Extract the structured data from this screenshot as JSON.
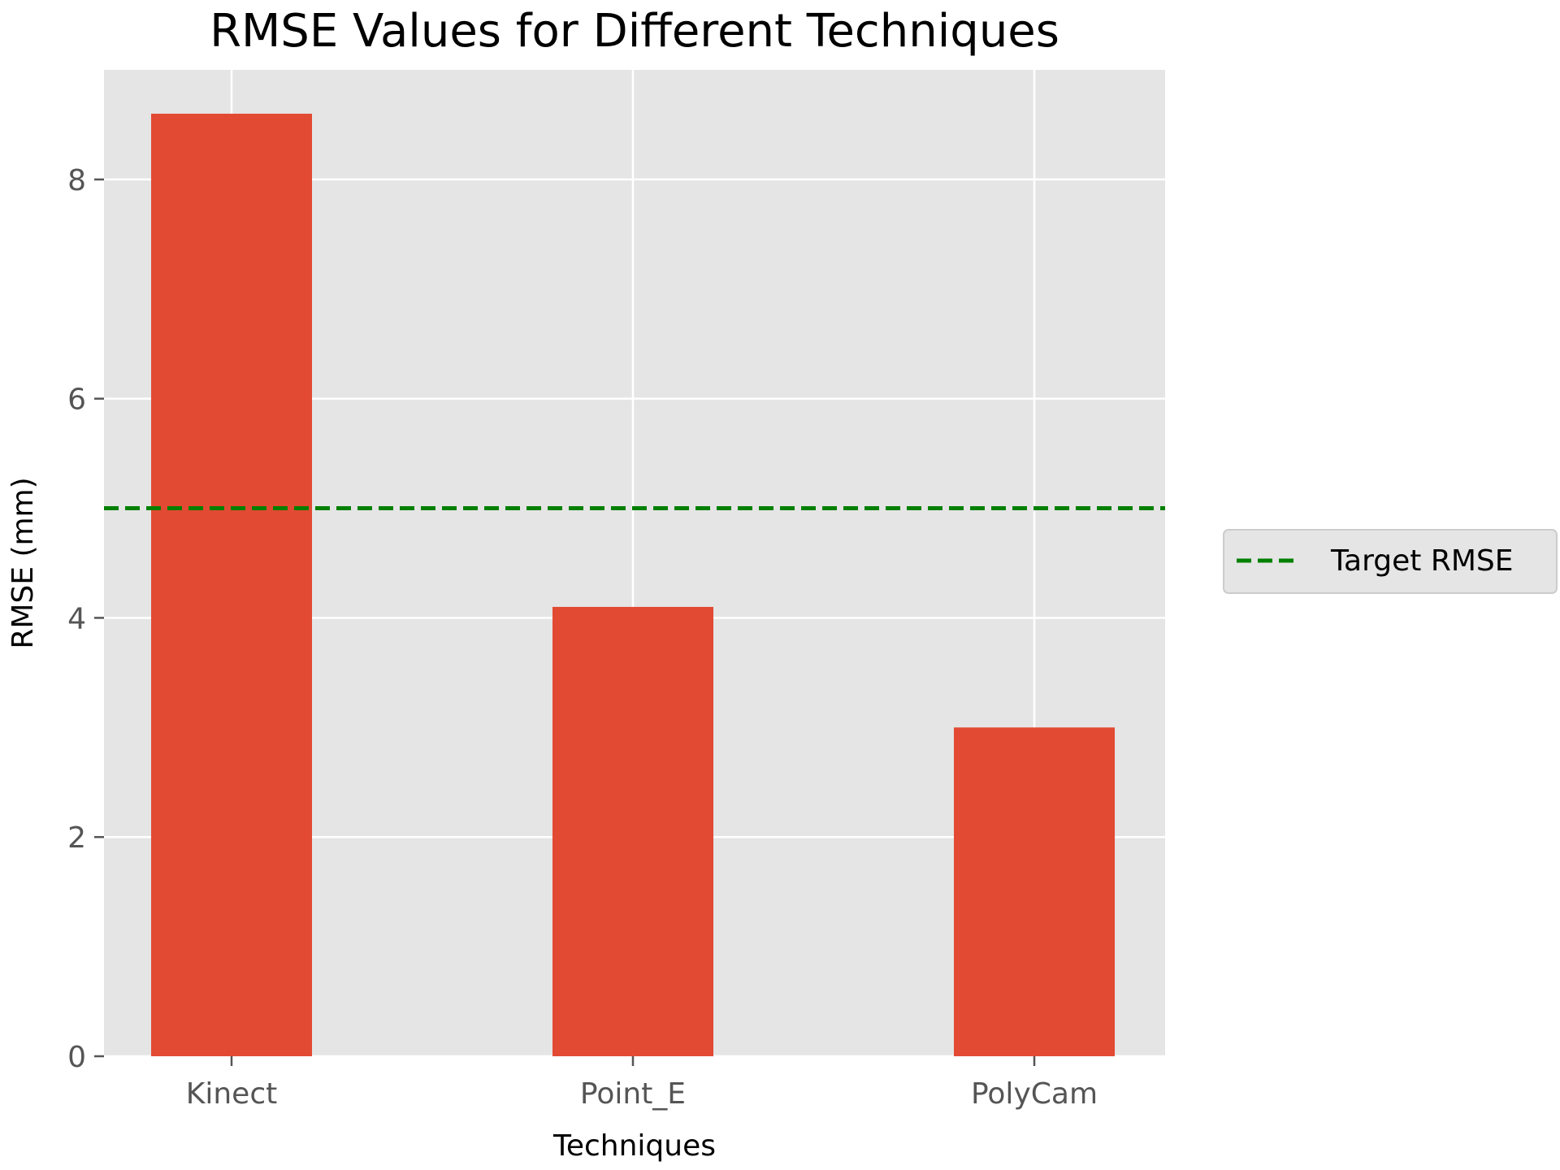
{
  "chart_data": {
    "type": "bar",
    "title": "RMSE Values for Different Techniques",
    "xlabel": "Techniques",
    "ylabel": "RMSE (mm)",
    "categories": [
      "Kinect",
      "Point_E",
      "PolyCam"
    ],
    "values": [
      8.6,
      4.1,
      3.0
    ],
    "ylim": [
      0,
      9.0
    ],
    "yticks": [
      0,
      2,
      4,
      6,
      8
    ],
    "grid": true,
    "legend_position": "right",
    "reference_line": {
      "label": "Target RMSE",
      "value": 5.0,
      "style": "dashed"
    },
    "colors": {
      "bar": "#E24A33",
      "reference_line": "#008000",
      "plot_background": "#E5E5E5",
      "grid": "#FFFFFF",
      "tick_label": "#555555"
    }
  }
}
